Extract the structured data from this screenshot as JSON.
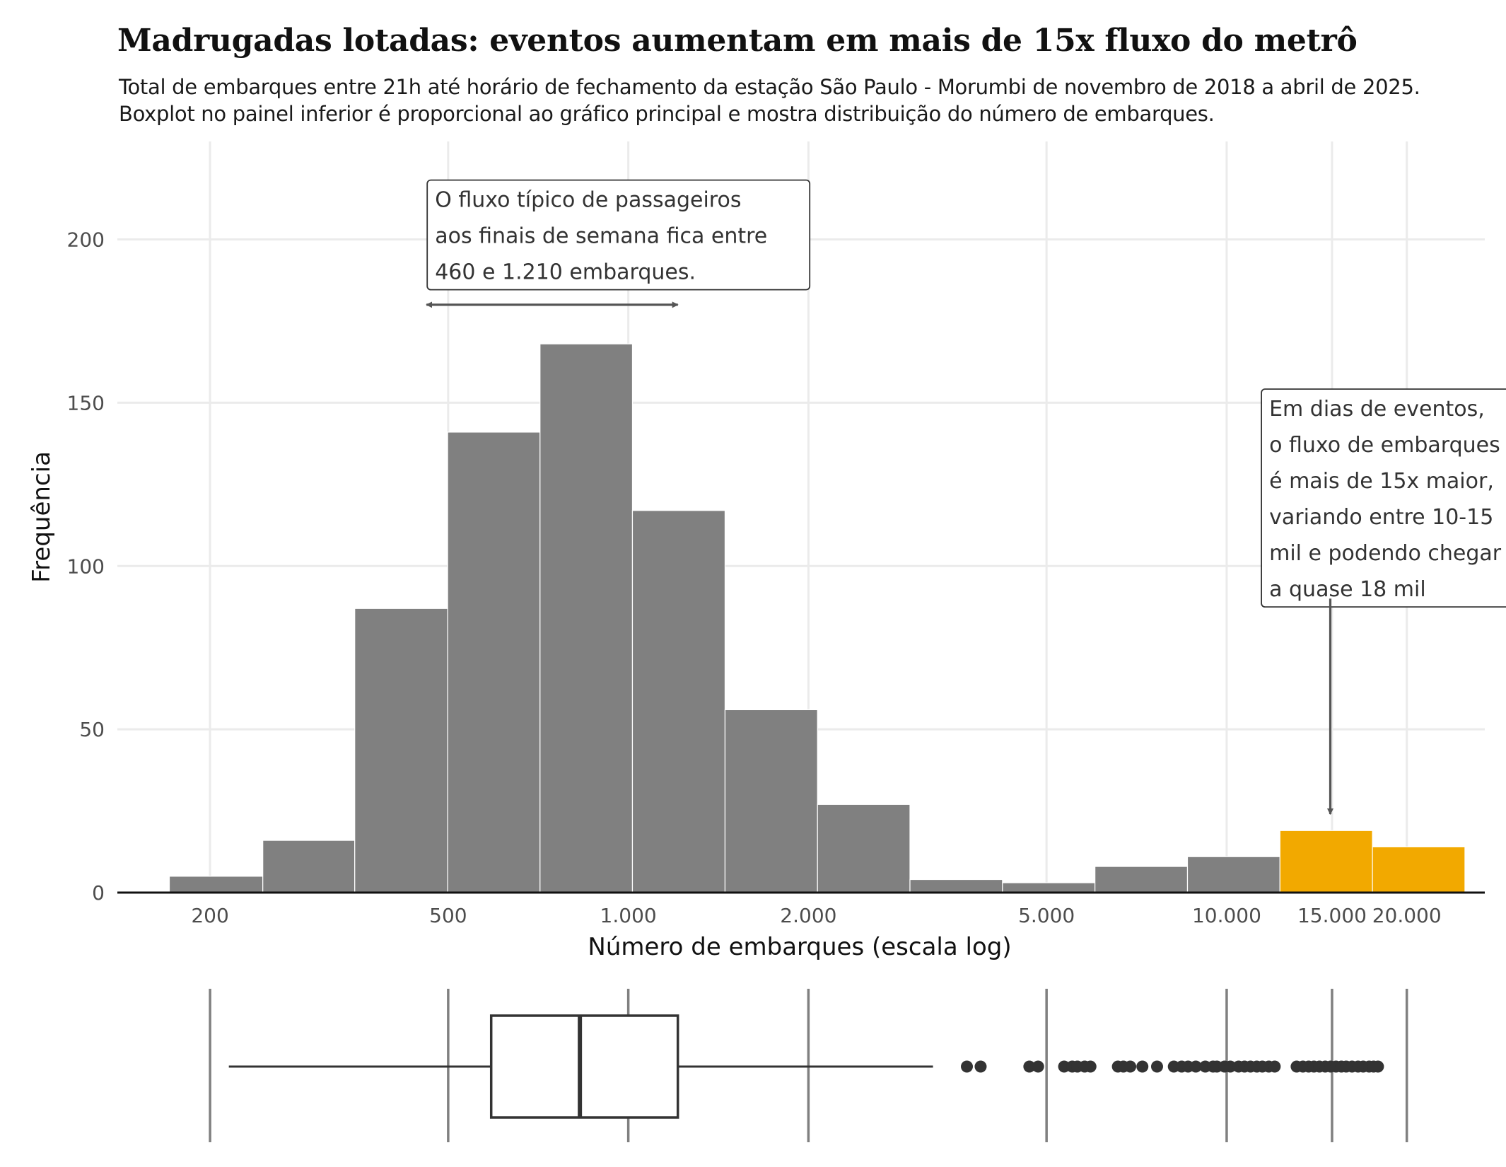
{
  "title": "Madrugadas lotadas: eventos aumentam em mais de 15x fluxo do metrô",
  "subtitle_lines": [
    "Total de embarques entre 21h até horário de fechamento da estação São Paulo - Morumbi de novembro de 2018 a abril de 2025.",
    "Boxplot no painel inferior é proporcional ao gráfico principal e mostra distribuição do número de embarques."
  ],
  "colors": {
    "bar": "#808080",
    "highlight": "#F2A900",
    "grid": "#EBEBEB",
    "ink": "#333333",
    "annot": "#555555",
    "vline": "#808080"
  },
  "chart_data": {
    "type": "bar",
    "subtype": "histogram",
    "xscale": "log10",
    "xlim": [
      140,
      27000
    ],
    "ylim": [
      0,
      230
    ],
    "xlabel": "Número de embarques (escala log)",
    "ylabel": "Frequência",
    "x_ticks": [
      200,
      500,
      1000,
      2000,
      5000,
      10000,
      15000,
      20000
    ],
    "x_tick_labels": [
      "200",
      "500",
      "1.000",
      "2.000",
      "5.000",
      "10.000",
      "15.000",
      "20.000"
    ],
    "y_ticks": [
      0,
      50,
      100,
      150,
      200
    ],
    "y_tick_labels": [
      "0",
      "50",
      "100",
      "150",
      "200"
    ],
    "bins": [
      {
        "x0": 171,
        "x1": 245,
        "count": 5,
        "highlight": false
      },
      {
        "x0": 245,
        "x1": 349,
        "count": 16,
        "highlight": false
      },
      {
        "x0": 349,
        "x1": 499,
        "count": 87,
        "highlight": false
      },
      {
        "x0": 499,
        "x1": 712,
        "count": 141,
        "highlight": false
      },
      {
        "x0": 712,
        "x1": 1016,
        "count": 168,
        "highlight": false
      },
      {
        "x0": 1016,
        "x1": 1451,
        "count": 117,
        "highlight": false
      },
      {
        "x0": 1451,
        "x1": 2071,
        "count": 56,
        "highlight": false
      },
      {
        "x0": 2071,
        "x1": 2956,
        "count": 27,
        "highlight": false
      },
      {
        "x0": 2956,
        "x1": 4220,
        "count": 4,
        "highlight": false
      },
      {
        "x0": 4220,
        "x1": 6024,
        "count": 3,
        "highlight": false
      },
      {
        "x0": 6024,
        "x1": 8600,
        "count": 8,
        "highlight": false
      },
      {
        "x0": 8600,
        "x1": 12276,
        "count": 11,
        "highlight": false
      },
      {
        "x0": 12276,
        "x1": 17524,
        "count": 19,
        "highlight": true
      },
      {
        "x0": 17524,
        "x1": 25015,
        "count": 14,
        "highlight": true
      }
    ],
    "annotations": [
      {
        "lines": [
          "O fluxo típico de passageiros",
          "aos finais de semana fica entre",
          "460 e 1.210 embarques."
        ],
        "x": 460,
        "y": 216,
        "arrow_x0": 460,
        "arrow_x1": 1210,
        "arrow_y": 180
      },
      {
        "lines": [
          "Em dias de eventos,",
          "o fluxo de embarques",
          "é mais de 15x maior,",
          "variando entre 10-15",
          "mil e podendo chegar",
          "a quase 18 mil"
        ],
        "x": 11400,
        "y": 152,
        "arrow_x": 14900,
        "arrow_y0": 90,
        "arrow_y1": 24
      }
    ],
    "boxplot": {
      "whisker_low": 215,
      "q1": 590,
      "median": 830,
      "q3": 1210,
      "whisker_high": 3230,
      "outliers": [
        3680,
        3880,
        4680,
        4840,
        5350,
        5520,
        5630,
        5790,
        5920,
        6580,
        6720,
        6900,
        7230,
        7650,
        8160,
        8410,
        8620,
        8880,
        9210,
        9490,
        9630,
        9920,
        10140,
        10470,
        10710,
        10960,
        11230,
        11470,
        11760,
        12030,
        13090,
        13410,
        13710,
        13990,
        14290,
        14610,
        14920,
        15230,
        15550,
        15840,
        16200,
        16580,
        16910,
        17300,
        17600,
        17900
      ]
    }
  }
}
